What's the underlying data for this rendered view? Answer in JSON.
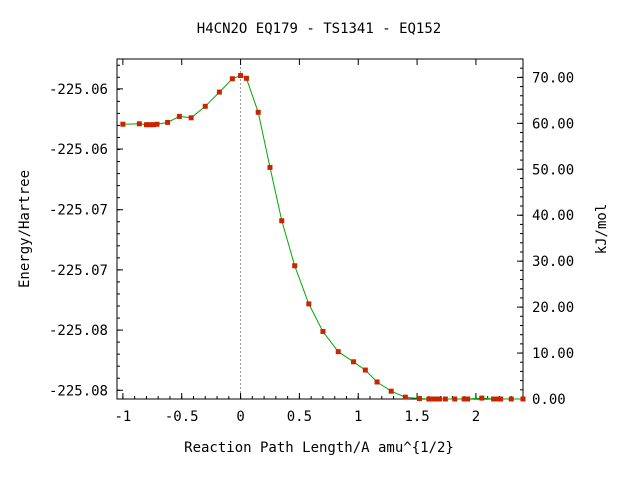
{
  "chart_data": {
    "type": "line",
    "title": "H4CN2O   EQ179 - TS1341 - EQ152",
    "xlabel": "Reaction Path Length/A amu^{1/2}",
    "ylabel": "Energy/Hartree",
    "y2label": "kJ/mol",
    "xlim": [
      -1.05,
      2.4
    ],
    "ylim_kj": [
      0.0,
      74.0
    ],
    "x_ticks": [
      {
        "value": -1,
        "label": "-1"
      },
      {
        "value": -0.5,
        "label": "-0.5"
      },
      {
        "value": 0,
        "label": "0"
      },
      {
        "value": 0.5,
        "label": "0.5"
      },
      {
        "value": 1,
        "label": "1"
      },
      {
        "value": 1.5,
        "label": "1.5"
      },
      {
        "value": 2,
        "label": "2"
      }
    ],
    "y_ticks_left": [
      {
        "value_kj": 67.5,
        "label": "-225.06"
      },
      {
        "value_kj": 54.4,
        "label": "-225.06"
      },
      {
        "value_kj": 41.2,
        "label": "-225.07"
      },
      {
        "value_kj": 28.1,
        "label": "-225.07"
      },
      {
        "value_kj": 15.0,
        "label": "-225.08"
      },
      {
        "value_kj": 1.9,
        "label": "-225.08"
      }
    ],
    "y_ticks_right": [
      {
        "value": 0,
        "label": "0.00"
      },
      {
        "value": 10,
        "label": "10.00"
      },
      {
        "value": 20,
        "label": "20.00"
      },
      {
        "value": 30,
        "label": "30.00"
      },
      {
        "value": 40,
        "label": "40.00"
      },
      {
        "value": 50,
        "label": "50.00"
      },
      {
        "value": 60,
        "label": "60.00"
      },
      {
        "value": 70,
        "label": "70.00"
      }
    ],
    "ts_x": 0,
    "grid": false,
    "legend": "none",
    "series": [
      {
        "x": [
          -1.0,
          -0.86,
          -0.8,
          -0.77,
          -0.74,
          -0.71,
          -0.62,
          -0.52,
          -0.42,
          -0.3,
          -0.18,
          -0.07,
          0.0,
          0.05,
          0.15,
          0.25,
          0.35,
          0.46,
          0.58,
          0.7,
          0.83,
          0.96,
          1.06,
          1.16,
          1.28,
          1.4,
          1.52,
          1.6,
          1.64,
          1.66,
          1.69,
          1.74,
          1.82,
          1.9,
          1.93,
          2.05,
          2.15,
          2.18,
          2.21,
          2.3,
          2.4
        ],
        "y": [
          59.8,
          59.9,
          59.7,
          59.7,
          59.7,
          59.8,
          60.2,
          61.5,
          61.2,
          63.7,
          66.8,
          69.7,
          70.4,
          69.8,
          62.4,
          50.4,
          38.8,
          29.0,
          20.7,
          14.7,
          10.3,
          8.1,
          6.3,
          3.7,
          1.7,
          0.4,
          0.1,
          0.0,
          0.0,
          0.0,
          0.0,
          0.0,
          0.0,
          0.0,
          0.0,
          0.2,
          0.0,
          0.0,
          0.0,
          0.0,
          0.0
        ],
        "color": "#00aa00",
        "marker_color": "#cc2200"
      }
    ]
  }
}
